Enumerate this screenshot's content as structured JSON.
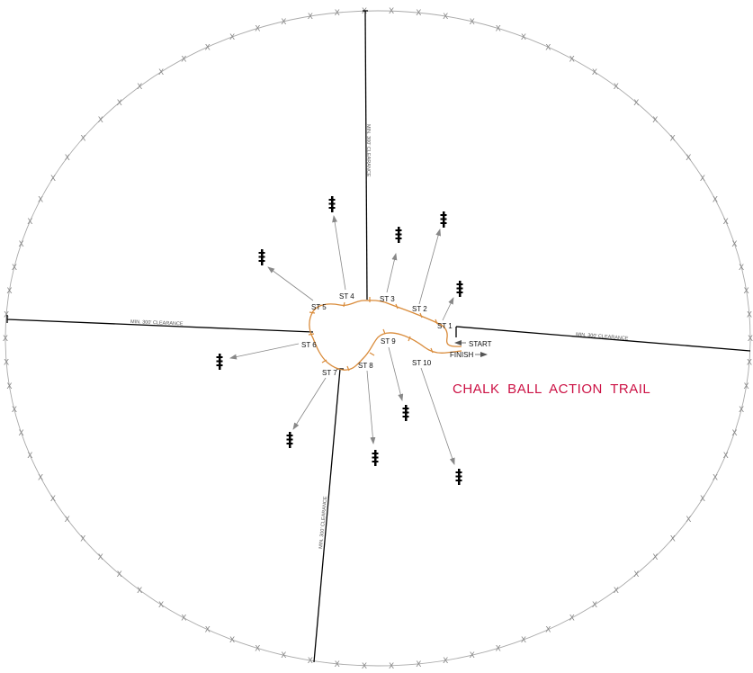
{
  "title": "CHALK BALL ACTION TRAIL",
  "colors": {
    "title": "#cc1144",
    "trail": "#d98b3a",
    "fence": "#aaaaaa",
    "line": "#000000",
    "arrow": "#888888",
    "target": "#000000"
  },
  "trail_labels": {
    "start": "START",
    "finish": "FINISH"
  },
  "clearance_label": "MIN. 300' CLEARANCE",
  "stations": [
    {
      "id": "st1",
      "label": "ST 1"
    },
    {
      "id": "st2",
      "label": "ST 2"
    },
    {
      "id": "st3",
      "label": "ST 3"
    },
    {
      "id": "st4",
      "label": "ST 4"
    },
    {
      "id": "st5",
      "label": "ST 5"
    },
    {
      "id": "st6",
      "label": "ST 6"
    },
    {
      "id": "st7",
      "label": "ST 7"
    },
    {
      "id": "st8",
      "label": "ST 8"
    },
    {
      "id": "st9",
      "label": "ST 9"
    },
    {
      "id": "st10",
      "label": "ST 10"
    }
  ],
  "fence_marker": "X",
  "target_icon": "target-silhouette-icon"
}
